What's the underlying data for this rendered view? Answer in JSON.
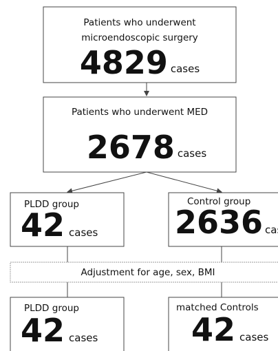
{
  "nodes": [
    {
      "label_lines": [
        "Patients who underwent",
        "microendoscopic surgery"
      ],
      "count": 4829,
      "unit": "cases"
    },
    {
      "label_lines": [
        "Patients who underwent MED"
      ],
      "count": 2678,
      "unit": "cases"
    },
    {
      "label_lines": [
        "PLDD group"
      ],
      "count": 42,
      "unit": "cases"
    },
    {
      "label_lines": [
        "Control group"
      ],
      "count": 2636,
      "unit": "cases"
    },
    {
      "label_lines": [
        "PLDD group"
      ],
      "count": 42,
      "unit": "cases"
    },
    {
      "label_lines": [
        "matched Controls"
      ],
      "count": 42,
      "unit": "cases"
    }
  ],
  "adjustment": "Adjustment for age, sex, BMI"
}
